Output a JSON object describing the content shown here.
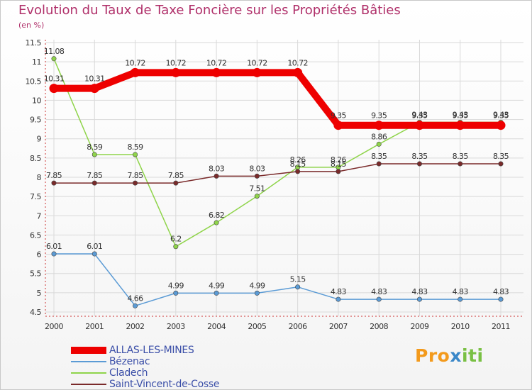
{
  "title": "Evolution du Taux de Taxe Foncière sur les Propriétés Bâties",
  "unit": "(en %)",
  "logo": {
    "p1": "Pro",
    "p2": "x",
    "p3": "iti"
  },
  "colors": {
    "title": "#b0306a",
    "grid": "#d9d9d9",
    "axis": "#cc3333",
    "tick_text": "#333333"
  },
  "chart_data": {
    "type": "line",
    "title": "Evolution du Taux de Taxe Foncière sur les Propriétés Bâties",
    "ylabel": "(en %)",
    "xlabel": "",
    "ylim": [
      4.5,
      11.5
    ],
    "yticks": [
      "4.5",
      "5",
      "5.5",
      "6",
      "6.5",
      "7",
      "7.5",
      "8",
      "8.5",
      "9",
      "9.5",
      "10",
      "10.5",
      "11",
      "11.5"
    ],
    "categories": [
      "2000",
      "2001",
      "2002",
      "2003",
      "2004",
      "2005",
      "2006",
      "2007",
      "2008",
      "2009",
      "2010",
      "2011"
    ],
    "grid": true,
    "series": [
      {
        "name": "ALLAS-LES-MINES",
        "color": "#ee0000",
        "values": [
          10.31,
          10.31,
          10.72,
          10.72,
          10.72,
          10.72,
          10.72,
          9.35,
          9.35,
          9.35,
          9.35,
          9.35
        ],
        "labels": [
          "10.31",
          "10.31",
          "10.72",
          "10.72",
          "10.72",
          "10.72",
          "10.72",
          "9.35",
          "9.35",
          "9.35",
          "9.35",
          "9.35"
        ]
      },
      {
        "name": "Bézenac",
        "color": "#5b9bd5",
        "values": [
          6.01,
          6.01,
          4.66,
          4.99,
          4.99,
          4.99,
          5.15,
          4.83,
          4.83,
          4.83,
          4.83,
          4.83
        ],
        "labels": [
          "6.01",
          "6.01",
          "4.66",
          "4.99",
          "4.99",
          "4.99",
          "5.15",
          "4.83",
          "4.83",
          "4.83",
          "4.83",
          "4.83"
        ]
      },
      {
        "name": "Cladech",
        "color": "#8fd44a",
        "values": [
          11.08,
          8.59,
          8.59,
          6.2,
          6.82,
          7.51,
          8.26,
          8.26,
          8.86,
          9.43,
          9.43,
          9.43
        ],
        "labels": [
          "11.08",
          "8.59",
          "8.59",
          "6.2",
          "6.82",
          "7.51",
          "8.26",
          "8.26",
          "8.86",
          "9.43",
          "9.43",
          "9.43"
        ]
      },
      {
        "name": "Saint-Vincent-de-Cosse",
        "color": "#7a2a2a",
        "values": [
          7.85,
          7.85,
          7.85,
          7.85,
          8.03,
          8.03,
          8.15,
          8.15,
          8.35,
          8.35,
          8.35,
          8.35
        ],
        "labels": [
          "7.85",
          "7.85",
          "7.85",
          "7.85",
          "8.03",
          "8.03",
          "8.15",
          "8.15",
          "8.35",
          "8.35",
          "8.35",
          "8.35"
        ]
      }
    ],
    "legend": "bottom-left"
  }
}
